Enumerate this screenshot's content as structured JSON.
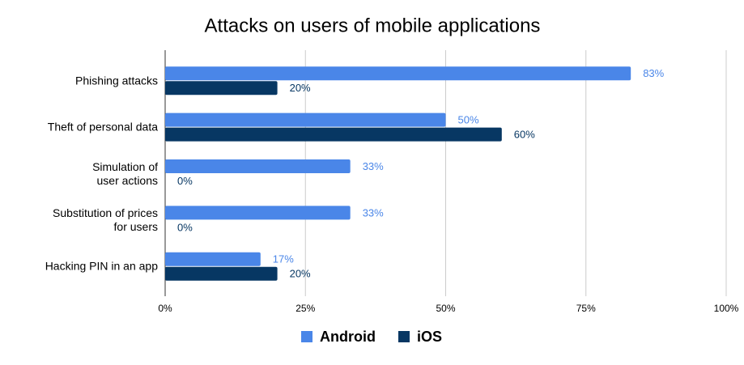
{
  "chart_data": {
    "type": "bar",
    "orientation": "horizontal",
    "title": "Attacks on users of mobile applications",
    "categories": [
      "Phishing attacks",
      "Theft of personal data",
      "Simulation of\nuser actions",
      "Substitution of prices\nfor users",
      "Hacking PIN in an app"
    ],
    "series": [
      {
        "name": "Android",
        "color": "#4a86e8",
        "values": [
          83,
          50,
          33,
          33,
          17
        ],
        "value_labels": [
          "83%",
          "50%",
          "33%",
          "33%",
          "17%"
        ]
      },
      {
        "name": "iOS",
        "color": "#073763",
        "values": [
          20,
          60,
          0,
          0,
          20
        ],
        "value_labels": [
          "20%",
          "60%",
          "0%",
          "0%",
          "20%"
        ]
      }
    ],
    "xlim": [
      0,
      100
    ],
    "xticks": [
      {
        "value": 0,
        "label": "0%"
      },
      {
        "value": 25,
        "label": "25%"
      },
      {
        "value": 50,
        "label": "50%"
      },
      {
        "value": 75,
        "label": "75%"
      },
      {
        "value": 100,
        "label": "100%"
      }
    ],
    "grid": true,
    "legend": "bottom"
  }
}
